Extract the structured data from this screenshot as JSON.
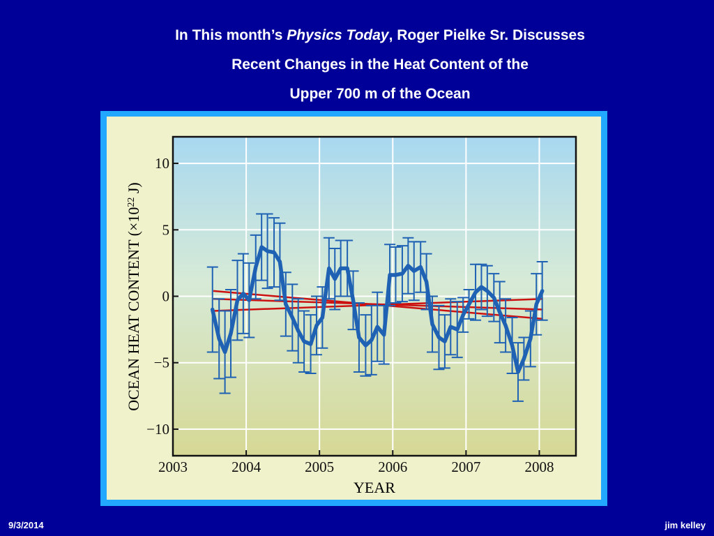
{
  "slide": {
    "title_line1_pre": "In This month’s ",
    "title_line1_italic": "Physics Today",
    "title_line1_post": ", Roger Pielke Sr. Discusses",
    "title_line2": "Recent Changes in the Heat Content of the",
    "title_line3": "Upper 700 m of the Ocean"
  },
  "footer": {
    "date": "9/3/2014",
    "author": "jim kelley"
  },
  "colors": {
    "background": "#000099",
    "frame": "#22a8ff",
    "series": "#1f62b4",
    "trend": "#cc1111"
  },
  "chart_data": {
    "type": "line",
    "title": "",
    "xlabel": "YEAR",
    "ylabel_text": "OCEAN HEAT CONTENT (×10",
    "ylabel_sup": "22",
    "ylabel_end": " J)",
    "xlim": [
      2003,
      2008.5
    ],
    "ylim": [
      -12,
      12
    ],
    "x_ticks": [
      2003,
      2004,
      2005,
      2006,
      2007,
      2008
    ],
    "y_ticks": [
      10,
      5,
      0,
      -5,
      -10
    ],
    "y_tick_labels": [
      "10",
      "5",
      "0",
      "−5",
      "−10"
    ],
    "grid": true,
    "series": [
      {
        "x": [
          2003.54,
          2003.63,
          2003.71,
          2003.79,
          2003.88,
          2003.96,
          2004.04,
          2004.13,
          2004.21,
          2004.29,
          2004.38,
          2004.46,
          2004.54,
          2004.63,
          2004.71,
          2004.79,
          2004.88,
          2004.96,
          2005.04,
          2005.13,
          2005.21,
          2005.29,
          2005.38,
          2005.46,
          2005.54,
          2005.63,
          2005.71,
          2005.79,
          2005.88,
          2005.96,
          2006.04,
          2006.13,
          2006.21,
          2006.29,
          2006.38,
          2006.46,
          2006.54,
          2006.63,
          2006.71,
          2006.79,
          2006.88,
          2006.96,
          2007.04,
          2007.13,
          2007.21,
          2007.29,
          2007.38,
          2007.46,
          2007.54,
          2007.63,
          2007.71,
          2007.79,
          2007.88,
          2007.96,
          2008.04
        ],
        "y": [
          -1.0,
          -3.2,
          -4.2,
          -2.8,
          -0.3,
          0.2,
          -0.3,
          2.2,
          3.7,
          3.4,
          3.3,
          2.6,
          -0.6,
          -1.6,
          -2.6,
          -3.4,
          -3.6,
          -2.2,
          -1.6,
          2.1,
          1.3,
          2.1,
          2.1,
          -0.3,
          -3.1,
          -3.7,
          -3.3,
          -2.3,
          -2.9,
          1.6,
          1.6,
          1.7,
          2.3,
          1.9,
          2.2,
          1.1,
          -2.1,
          -3.1,
          -3.4,
          -2.3,
          -2.5,
          -1.4,
          -0.6,
          0.3,
          0.7,
          0.4,
          -0.1,
          -1.2,
          -2.2,
          -3.7,
          -5.7,
          -4.7,
          -3.2,
          -0.6,
          0.4
        ],
        "err": [
          3.2,
          3.0,
          3.1,
          3.3,
          3.0,
          3.0,
          2.8,
          2.4,
          2.5,
          2.8,
          2.6,
          2.9,
          2.4,
          2.5,
          2.4,
          2.3,
          2.2,
          2.2,
          2.3,
          2.3,
          2.3,
          2.1,
          2.1,
          2.2,
          2.6,
          2.3,
          2.6,
          2.6,
          2.2,
          2.3,
          2.1,
          2.1,
          2.1,
          2.2,
          1.9,
          2.1,
          2.1,
          2.4,
          2.0,
          2.1,
          2.1,
          1.3,
          1.1,
          2.1,
          1.7,
          1.9,
          1.8,
          2.3,
          2.0,
          2.1,
          2.2,
          1.6,
          2.1,
          2.3,
          2.2
        ]
      }
    ],
    "trend_lines": [
      {
        "x": [
          2003.55,
          2008.05
        ],
        "y": [
          0.4,
          -1.7
        ]
      },
      {
        "x": [
          2003.55,
          2008.05
        ],
        "y": [
          -0.2,
          -1.0
        ]
      },
      {
        "x": [
          2003.55,
          2008.05
        ],
        "y": [
          -1.1,
          -0.2
        ]
      }
    ]
  }
}
